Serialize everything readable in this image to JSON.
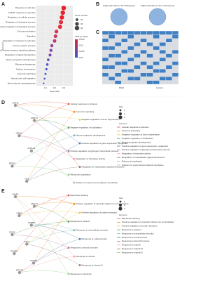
{
  "panel_labels": [
    "A",
    "B",
    "C",
    "D",
    "E"
  ],
  "chart_data": [
    {
      "type": "dotplot",
      "x_label": "Gene ratio",
      "y_label": "GO term",
      "categories": [
        "Response to stimulus",
        "Cellular response to stimulus",
        "Regulation of cellular process",
        "Regulation of biological process",
        "Positive regulation of biological process",
        "Cell communication",
        "Signaling",
        "Regulation of response to stimulus",
        "Immune system process",
        "Cell surface receptor signaling pathway",
        "Regulation of signal transduction",
        "Neuron projection development",
        "Ribosome biogenesis",
        "Sodium ion transport",
        "Genomic imprinting",
        "Neural crest cell migration",
        "Bone induced morphogenesis"
      ],
      "values": [
        0.3,
        0.29,
        0.28,
        0.27,
        0.26,
        0.22,
        0.21,
        0.2,
        0.17,
        0.16,
        0.15,
        0.13,
        0.12,
        0.11,
        0.1,
        0.09,
        0.08
      ],
      "sizes": [
        60,
        58,
        55,
        50,
        48,
        40,
        38,
        36,
        30,
        28,
        25,
        20,
        18,
        15,
        12,
        10,
        8
      ],
      "point_colors": [
        "#e8202a",
        "#e8202a",
        "#e8202a",
        "#e32b3a",
        "#e32b3a",
        "#d43553",
        "#c93a62",
        "#b23f7c",
        "#9a4495",
        "#8a47a5",
        "#7a4ab3",
        "#6a4dbf",
        "#5a50c9",
        "#4d53d2",
        "#4356d8",
        "#3b58dc",
        "#3559de"
      ],
      "xlim": [
        0,
        0.4
      ],
      "xticks": [
        0.1,
        0.2,
        0.3
      ],
      "size_legend_title": "Gene number",
      "size_legend": [
        20,
        40,
        60
      ],
      "color_legend_title": "FDR (p value)",
      "color_ticks": [
        0.005,
        0.01,
        0.015,
        0.02
      ],
      "color_scale": [
        "#e8202a",
        "#3559de"
      ]
    },
    {
      "type": "heatmap",
      "groups": [
        "PGM",
        "Control"
      ],
      "on_color": "#3f7fc4",
      "off_color": "#d9dde2",
      "matrix": [
        [
          1,
          1,
          1,
          1,
          1,
          1,
          1,
          1,
          1,
          1,
          1,
          1
        ],
        [
          0,
          1,
          0,
          0,
          1,
          0,
          0,
          0,
          1,
          0,
          0,
          1
        ],
        [
          1,
          0,
          0,
          1,
          0,
          0,
          1,
          0,
          0,
          0,
          1,
          0
        ],
        [
          0,
          0,
          1,
          0,
          0,
          1,
          0,
          1,
          0,
          1,
          0,
          0
        ],
        [
          1,
          1,
          0,
          0,
          1,
          0,
          0,
          0,
          1,
          0,
          0,
          0
        ],
        [
          0,
          0,
          0,
          1,
          0,
          0,
          1,
          0,
          0,
          1,
          0,
          1
        ],
        [
          0,
          1,
          1,
          0,
          0,
          1,
          0,
          1,
          0,
          0,
          1,
          0
        ],
        [
          1,
          0,
          0,
          0,
          1,
          0,
          0,
          0,
          0,
          1,
          0,
          0
        ],
        [
          0,
          0,
          1,
          1,
          0,
          0,
          1,
          0,
          1,
          0,
          0,
          1
        ],
        [
          1,
          1,
          0,
          0,
          0,
          1,
          0,
          1,
          0,
          0,
          1,
          0
        ],
        [
          0,
          0,
          0,
          1,
          1,
          0,
          0,
          0,
          1,
          1,
          0,
          0
        ],
        [
          1,
          0,
          1,
          0,
          0,
          0,
          1,
          1,
          0,
          0,
          0,
          1
        ],
        [
          0,
          1,
          0,
          0,
          1,
          1,
          0,
          0,
          0,
          1,
          1,
          0
        ],
        [
          0,
          0,
          1,
          0,
          0,
          0,
          0,
          1,
          1,
          0,
          0,
          0
        ]
      ]
    }
  ],
  "venn": {
    "left": "Highly abundant in the PGM group",
    "right": "Highly abundant in the control group"
  },
  "network_d": {
    "genes": [
      "USP11",
      "SPRY2",
      "NR4A1",
      "ATP1A1",
      "RPS19",
      "H19"
    ],
    "terms": [
      "Cellular response to stimulus",
      "Genomic imprinting",
      "Negative regulation of axon regeneration",
      "Negative regulation of localization",
      "Neuron projection development",
      "Positive regulation of gene expression, epigenetic",
      "Positive regulation of glycogen biosynthetic process",
      "Regulation of hydrolase activity",
      "Regulation of multicellular organismal process",
      "Ribosome localization",
      "Sodium ion export across plasma membrane"
    ],
    "colors": [
      "#e15759",
      "#f28e2b",
      "#edc948",
      "#59a14f",
      "#76b7b2",
      "#4e79a7",
      "#b07aa1",
      "#ff9da7",
      "#9c755f",
      "#8cd17d",
      "#bab0ac"
    ],
    "edges": [
      [
        0,
        0
      ],
      [
        0,
        1
      ],
      [
        0,
        5
      ],
      [
        1,
        2
      ],
      [
        1,
        3
      ],
      [
        1,
        8
      ],
      [
        2,
        0
      ],
      [
        2,
        6
      ],
      [
        2,
        7
      ],
      [
        3,
        10
      ],
      [
        3,
        3
      ],
      [
        4,
        9
      ],
      [
        4,
        4
      ],
      [
        5,
        1
      ],
      [
        5,
        5
      ],
      [
        5,
        8
      ]
    ],
    "legend_title": "GO term",
    "size_title": "Size",
    "size_legend": [
      1,
      2,
      3
    ]
  },
  "network_e": {
    "genes": [
      "LPAR1",
      "ADCY2",
      "GRB2",
      "TRPM8",
      "RGS2",
      "ATF3",
      "PIK3R1",
      "CXCR4",
      "NPY1R"
    ],
    "terms": [
      "Membrane docking",
      "Positive regulation of cytosolic calcium ion concentration",
      "Positive regulation of protein transport",
      "Response to ethanol",
      "Response to extracellular stimulus",
      "Response to nutrient levels",
      "Response to steroid hormone",
      "Response to vitamin",
      "Response to vitamin D",
      "Response to vitamin E"
    ],
    "colors": [
      "#e15759",
      "#f28e2b",
      "#edc948",
      "#59a14f",
      "#76b7b2",
      "#4e79a7",
      "#b07aa1",
      "#ff9da7",
      "#9c755f",
      "#8cd17d"
    ],
    "edges": [
      [
        0,
        1
      ],
      [
        0,
        7
      ],
      [
        0,
        9
      ],
      [
        1,
        1
      ],
      [
        1,
        3
      ],
      [
        2,
        0
      ],
      [
        2,
        2
      ],
      [
        3,
        4
      ],
      [
        3,
        5
      ],
      [
        4,
        6
      ],
      [
        4,
        3
      ],
      [
        5,
        4
      ],
      [
        5,
        8
      ],
      [
        6,
        2
      ],
      [
        6,
        0
      ],
      [
        7,
        1
      ],
      [
        7,
        5
      ],
      [
        8,
        7
      ],
      [
        8,
        6
      ],
      [
        8,
        9
      ]
    ],
    "legend_title": "GO term",
    "size_title": "Size",
    "size_legend": [
      1,
      2,
      3
    ]
  }
}
